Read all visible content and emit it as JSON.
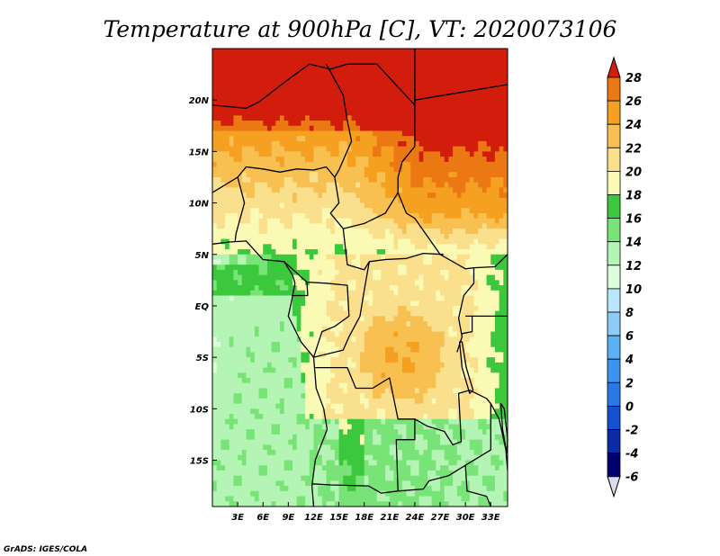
{
  "chart_data": {
    "type": "heatmap",
    "title": "Temperature at 900hPa [C], VT: 2020073106",
    "credit": "GrADS: IGES/COLA",
    "x_ticks": [
      "3E",
      "6E",
      "9E",
      "12E",
      "15E",
      "18E",
      "21E",
      "24E",
      "27E",
      "30E",
      "33E"
    ],
    "y_ticks": [
      "20N",
      "15N",
      "10N",
      "5N",
      "EQ",
      "5S",
      "10S",
      "15S"
    ],
    "lon_range": [
      0,
      35
    ],
    "lat_range": [
      -19.5,
      25
    ],
    "colorbar": {
      "ticks": [
        "28",
        "26",
        "24",
        "22",
        "20",
        "18",
        "16",
        "14",
        "12",
        "10",
        "8",
        "6",
        "4",
        "2",
        "0",
        "-2",
        "-4",
        "-6"
      ],
      "levels": [
        -6,
        -4,
        -2,
        0,
        2,
        4,
        6,
        8,
        10,
        12,
        14,
        16,
        18,
        20,
        22,
        24,
        26,
        28
      ],
      "colors": [
        "#00006e",
        "#0a2aa8",
        "#1650d2",
        "#2a78e6",
        "#3c94f0",
        "#5cb0f4",
        "#8cccf8",
        "#b8e6fc",
        "#dcfcdc",
        "#b4f4b4",
        "#78e478",
        "#3cc83c",
        "#fafab4",
        "#fae08c",
        "#f8c050",
        "#f5a020",
        "#ec7814",
        "#e84a0c",
        "#d21c0c"
      ],
      "extend_below_color": "#dcdcf0",
      "extend_above_color": "#d21c0c"
    }
  }
}
